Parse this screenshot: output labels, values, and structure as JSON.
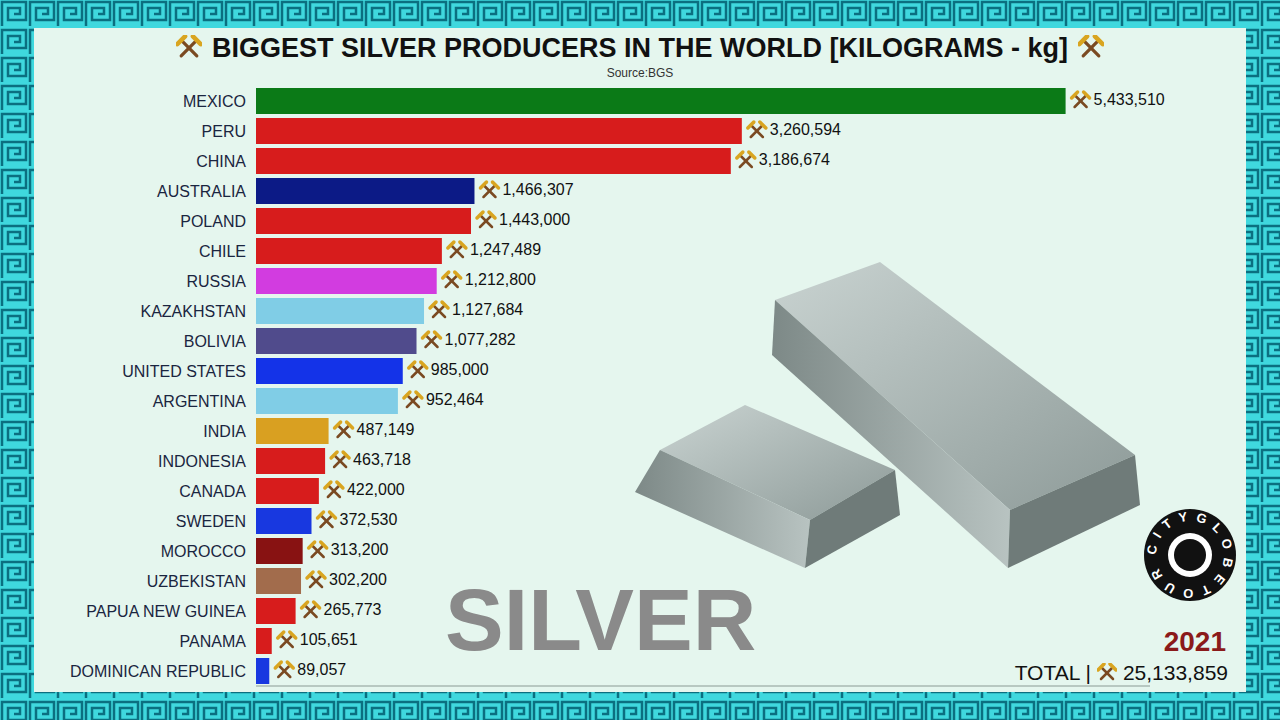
{
  "chart_data": {
    "type": "bar",
    "orientation": "horizontal",
    "title": "BIGGEST SILVER PRODUCERS IN THE WORLD [KILOGRAMS - kg]",
    "subtitle": "Source:BGS",
    "categories": [
      "MEXICO",
      "PERU",
      "CHINA",
      "AUSTRALIA",
      "POLAND",
      "CHILE",
      "RUSSIA",
      "KAZAKHSTAN",
      "BOLIVIA",
      "UNITED STATES",
      "ARGENTINA",
      "INDIA",
      "INDONESIA",
      "CANADA",
      "SWEDEN",
      "MOROCCO",
      "UZBEKISTAN",
      "PAPUA NEW GUINEA",
      "PANAMA",
      "DOMINICAN REPUBLIC"
    ],
    "values": [
      5433510,
      3260594,
      3186674,
      1466307,
      1443000,
      1247489,
      1212800,
      1127684,
      1077282,
      985000,
      952464,
      487149,
      463718,
      422000,
      372530,
      313200,
      302200,
      265773,
      105651,
      89057
    ],
    "value_labels": [
      "5,433,510",
      "3,260,594",
      "3,186,674",
      "1,466,307",
      "1,443,000",
      "1,247,489",
      "1,212,800",
      "1,127,684",
      "1,077,282",
      "985,000",
      "952,464",
      "487,149",
      "463,718",
      "422,000",
      "372,530",
      "313,200",
      "302,200",
      "265,773",
      "105,651",
      "89,057"
    ],
    "colors": [
      "#0b7a17",
      "#d71c1c",
      "#d71c1c",
      "#0c1a86",
      "#d71c1c",
      "#d71c1c",
      "#d23ce0",
      "#80cde6",
      "#504b8c",
      "#1433e8",
      "#80cde6",
      "#d9a021",
      "#d71c1c",
      "#d71c1c",
      "#1838e0",
      "#881212",
      "#a26c4c",
      "#d71c1c",
      "#d71c1c",
      "#1838e0"
    ],
    "xlim": [
      0,
      6000000
    ],
    "tick_labels": "y",
    "data_labels": true,
    "grid": false,
    "year": "2021",
    "total_label": "TOTAL |",
    "total": 25133859,
    "watermark": "SILVER",
    "logo": "CITYGLOBETOUR"
  }
}
